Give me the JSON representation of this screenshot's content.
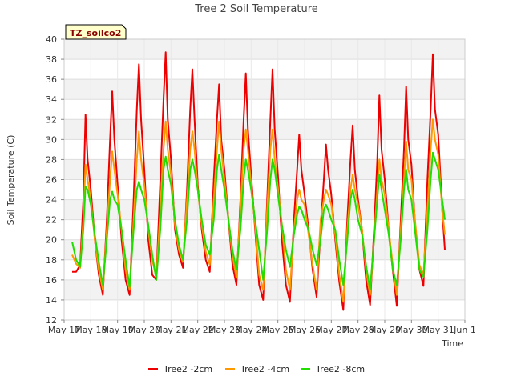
{
  "chart_data": {
    "type": "line",
    "title": "Tree 2 Soil Temperature",
    "xlabel": "Time",
    "ylabel": "Soil Temperature (C)",
    "badge": "TZ_soilco2",
    "ylim": [
      12,
      40
    ],
    "xlim": [
      0,
      15
    ],
    "yticks": [
      12,
      14,
      16,
      18,
      20,
      22,
      24,
      26,
      28,
      30,
      32,
      34,
      36,
      38,
      40
    ],
    "xticks": [
      {
        "v": 0,
        "label": "May 17"
      },
      {
        "v": 1,
        "label": "May 18"
      },
      {
        "v": 2,
        "label": "May 19"
      },
      {
        "v": 3,
        "label": "May 20"
      },
      {
        "v": 4,
        "label": "May 21"
      },
      {
        "v": 5,
        "label": "May 22"
      },
      {
        "v": 6,
        "label": "May 23"
      },
      {
        "v": 7,
        "label": "May 24"
      },
      {
        "v": 8,
        "label": "May 25"
      },
      {
        "v": 9,
        "label": "May 26"
      },
      {
        "v": 10,
        "label": "May 27"
      },
      {
        "v": 11,
        "label": "May 28"
      },
      {
        "v": 12,
        "label": "May 29"
      },
      {
        "v": 13,
        "label": "May 30"
      },
      {
        "v": 14,
        "label": "May 31"
      },
      {
        "v": 15,
        "label": "Jun 1"
      }
    ],
    "grid": true,
    "legend_position": "bottom",
    "series": [
      {
        "name": "Tree2 -2cm",
        "color": "#ee0000",
        "x": [
          0.3,
          0.45,
          0.6,
          0.72,
          0.8,
          0.88,
          1.0,
          1.15,
          1.3,
          1.45,
          1.6,
          1.72,
          1.8,
          1.88,
          2.0,
          2.15,
          2.3,
          2.45,
          2.6,
          2.72,
          2.8,
          2.88,
          3.0,
          3.15,
          3.3,
          3.45,
          3.6,
          3.72,
          3.8,
          3.88,
          4.0,
          4.15,
          4.3,
          4.45,
          4.6,
          4.72,
          4.8,
          4.88,
          5.0,
          5.15,
          5.3,
          5.45,
          5.6,
          5.72,
          5.8,
          5.88,
          6.0,
          6.15,
          6.3,
          6.45,
          6.6,
          6.72,
          6.8,
          6.88,
          7.0,
          7.15,
          7.3,
          7.45,
          7.6,
          7.72,
          7.8,
          7.88,
          8.0,
          8.15,
          8.3,
          8.45,
          8.6,
          8.72,
          8.8,
          8.88,
          9.0,
          9.15,
          9.3,
          9.45,
          9.6,
          9.72,
          9.8,
          9.88,
          10.0,
          10.15,
          10.3,
          10.45,
          10.6,
          10.72,
          10.8,
          10.88,
          11.0,
          11.15,
          11.3,
          11.45,
          11.6,
          11.72,
          11.8,
          11.88,
          12.0,
          12.15,
          12.3,
          12.45,
          12.6,
          12.72,
          12.8,
          12.88,
          13.0,
          13.15,
          13.3,
          13.45,
          13.6,
          13.72,
          13.8,
          13.88,
          14.0,
          14.15,
          14.25
        ],
        "y": [
          16.8,
          16.8,
          17.5,
          24,
          32.5,
          28,
          25,
          20,
          16.5,
          14.5,
          22,
          30,
          34.8,
          30,
          25.5,
          20,
          16,
          14.5,
          24,
          33,
          37.5,
          32,
          27,
          20,
          16.5,
          16,
          26,
          34,
          38.7,
          32,
          28,
          21,
          18.5,
          17.2,
          25,
          33,
          37,
          32,
          25.5,
          21,
          18,
          16.8,
          26,
          32,
          35.5,
          30,
          27,
          22,
          17.5,
          15.5,
          24,
          32,
          36.6,
          31,
          26.5,
          21,
          15.5,
          14,
          24,
          32,
          37,
          31,
          26.5,
          20,
          15.5,
          13.8,
          22,
          27,
          30.5,
          27,
          24.5,
          21,
          17,
          14.3,
          21,
          26,
          29.5,
          27,
          24.5,
          20,
          15.8,
          13,
          22,
          28,
          31.4,
          27,
          24,
          21,
          16,
          13.5,
          21,
          28,
          34.4,
          29,
          26,
          21,
          17,
          13.4,
          22,
          29,
          35.3,
          30,
          27.5,
          21,
          17,
          15.4,
          26,
          33,
          38.5,
          33,
          30.5,
          23,
          19
        ]
      },
      {
        "name": "Tree2 -4cm",
        "color": "#ff9900",
        "x": [
          0.3,
          0.45,
          0.6,
          0.72,
          0.8,
          0.88,
          1.0,
          1.15,
          1.3,
          1.45,
          1.6,
          1.72,
          1.8,
          1.88,
          2.0,
          2.15,
          2.3,
          2.45,
          2.6,
          2.72,
          2.8,
          2.88,
          3.0,
          3.15,
          3.3,
          3.45,
          3.6,
          3.72,
          3.8,
          3.88,
          4.0,
          4.15,
          4.3,
          4.45,
          4.6,
          4.72,
          4.8,
          4.88,
          5.0,
          5.15,
          5.3,
          5.45,
          5.6,
          5.72,
          5.8,
          5.88,
          6.0,
          6.15,
          6.3,
          6.45,
          6.6,
          6.72,
          6.8,
          6.88,
          7.0,
          7.15,
          7.3,
          7.45,
          7.6,
          7.72,
          7.8,
          7.88,
          8.0,
          8.15,
          8.3,
          8.45,
          8.6,
          8.72,
          8.8,
          8.88,
          9.0,
          9.15,
          9.3,
          9.45,
          9.6,
          9.72,
          9.8,
          9.88,
          10.0,
          10.15,
          10.3,
          10.45,
          10.6,
          10.72,
          10.8,
          10.88,
          11.0,
          11.15,
          11.3,
          11.45,
          11.6,
          11.72,
          11.8,
          11.88,
          12.0,
          12.15,
          12.3,
          12.45,
          12.6,
          12.72,
          12.8,
          12.88,
          13.0,
          13.15,
          13.3,
          13.45,
          13.6,
          13.72,
          13.8,
          13.88,
          14.0,
          14.15,
          14.25
        ],
        "y": [
          18.5,
          17.6,
          17.2,
          22,
          27.5,
          26,
          24,
          20,
          17,
          15,
          21,
          26,
          28.8,
          27,
          24.5,
          21,
          17,
          15,
          22,
          28,
          30.8,
          28,
          25.5,
          21,
          18,
          16.2,
          23,
          29,
          31.8,
          29,
          26.5,
          21.5,
          19,
          17.8,
          24,
          29,
          30.8,
          29,
          25,
          21.5,
          18.8,
          17.5,
          24,
          29,
          31.8,
          29,
          26,
          22,
          18.5,
          16.2,
          23,
          29,
          31,
          29,
          25.5,
          21.5,
          16.5,
          15,
          23,
          29,
          31,
          28,
          25.2,
          21.5,
          17,
          15,
          21,
          24,
          25,
          24,
          23.5,
          20.5,
          17.5,
          15,
          22,
          24,
          25,
          24.5,
          23.5,
          20.5,
          16.5,
          13.8,
          21,
          25,
          26.5,
          25,
          23.5,
          21,
          17,
          14.5,
          20,
          25,
          28,
          26,
          24.5,
          21,
          17.5,
          14.5,
          21,
          26,
          29.8,
          27,
          26,
          21.5,
          17.5,
          16.5,
          23,
          29,
          32,
          30,
          28.5,
          23,
          20.5
        ]
      },
      {
        "name": "Tree2 -8cm",
        "color": "#22dd00",
        "x": [
          0.3,
          0.45,
          0.6,
          0.72,
          0.8,
          0.88,
          1.0,
          1.15,
          1.3,
          1.45,
          1.6,
          1.72,
          1.8,
          1.88,
          2.0,
          2.15,
          2.3,
          2.45,
          2.6,
          2.72,
          2.8,
          2.88,
          3.0,
          3.15,
          3.3,
          3.45,
          3.6,
          3.72,
          3.8,
          3.88,
          4.0,
          4.15,
          4.3,
          4.45,
          4.6,
          4.72,
          4.8,
          4.88,
          5.0,
          5.15,
          5.3,
          5.45,
          5.6,
          5.72,
          5.8,
          5.88,
          6.0,
          6.15,
          6.3,
          6.45,
          6.6,
          6.72,
          6.8,
          6.88,
          7.0,
          7.15,
          7.3,
          7.45,
          7.6,
          7.72,
          7.8,
          7.88,
          8.0,
          8.15,
          8.3,
          8.45,
          8.6,
          8.72,
          8.8,
          8.88,
          9.0,
          9.15,
          9.3,
          9.45,
          9.6,
          9.72,
          9.8,
          9.88,
          10.0,
          10.15,
          10.3,
          10.45,
          10.6,
          10.72,
          10.8,
          10.88,
          11.0,
          11.15,
          11.3,
          11.45,
          11.6,
          11.72,
          11.8,
          11.88,
          12.0,
          12.15,
          12.3,
          12.45,
          12.6,
          12.72,
          12.8,
          12.88,
          13.0,
          13.15,
          13.3,
          13.45,
          13.6,
          13.72,
          13.8,
          13.88,
          14.0,
          14.15,
          14.25
        ],
        "y": [
          19.8,
          18,
          17.3,
          21,
          25.3,
          25,
          23.5,
          20.5,
          17.8,
          15.5,
          20,
          24,
          24.8,
          24,
          23.5,
          21,
          18,
          15.3,
          21,
          25,
          25.8,
          25,
          24,
          21.5,
          18.5,
          16,
          21,
          27,
          28.3,
          27,
          25.5,
          22,
          19.5,
          18,
          22,
          27,
          28,
          27,
          25,
          22,
          19.5,
          18.5,
          22,
          27,
          28.5,
          27,
          25,
          22,
          19,
          17,
          21,
          26,
          28,
          27,
          25,
          22,
          19,
          16,
          21,
          26,
          28,
          27,
          24.5,
          21.5,
          19,
          17.3,
          20.5,
          22.5,
          23.3,
          23,
          22,
          21,
          19,
          17.5,
          20,
          23,
          23.5,
          23,
          22,
          21,
          18,
          15.5,
          20,
          24,
          25,
          24,
          22,
          20.5,
          17.5,
          15,
          20,
          24,
          26.5,
          25,
          23,
          20.5,
          17,
          15.5,
          20,
          25,
          27,
          25,
          24,
          20.5,
          17,
          16.3,
          21,
          26,
          28.7,
          28,
          27,
          24,
          22
        ]
      }
    ]
  }
}
